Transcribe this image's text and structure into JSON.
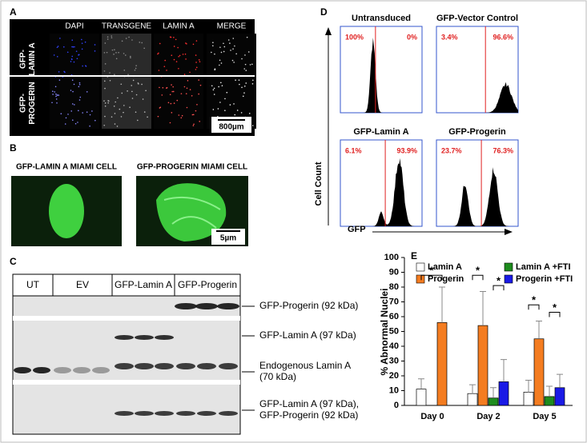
{
  "panels": {
    "a": {
      "label": "A",
      "columns": [
        "DAPI",
        "TRANSGENE",
        "LAMIN A",
        "MERGE"
      ],
      "rows": [
        "GFP-\nLAMIN A",
        "GFP-\nPROGERIN"
      ],
      "scale_bar": "800µm"
    },
    "b": {
      "label": "B",
      "captions": [
        "GFP-LAMIN A MIAMI CELL",
        "GFP-PROGERIN MIAMI CELL"
      ],
      "scale_bar": "5µm"
    },
    "c": {
      "label": "C",
      "lanes": [
        "UT",
        "EV",
        "GFP-Lamin A",
        "GFP-Progerin"
      ],
      "bands": [
        "GFP-Progerin (92 kDa)",
        "GFP-Lamin A (97 kDa)",
        "Endogenous Lamin A\n(70 kDa)",
        "GFP-Lamin A (97 kDa),\nGFP-Progerin (92 kDa)"
      ]
    },
    "d": {
      "label": "D",
      "y_label": "Cell Count",
      "x_label": "GFP",
      "plots": [
        {
          "title": "Untransduced",
          "left": "100%",
          "right": "0%"
        },
        {
          "title": "GFP-Vector Control",
          "left": "3.4%",
          "right": "96.6%"
        },
        {
          "title": "GFP-Lamin A",
          "left": "6.1%",
          "right": "93.9%"
        },
        {
          "title": "GFP-Progerin",
          "left": "23.7%",
          "right": "76.3%"
        }
      ]
    },
    "e": {
      "label": "E"
    }
  },
  "chart_data": {
    "type": "bar",
    "y_label": "% Abnormal Nuclei",
    "categories": [
      "Day 0",
      "Day 2",
      "Day 5"
    ],
    "series": [
      {
        "name": "Lamin A",
        "color": "#ffffff",
        "values": [
          11,
          8,
          9
        ],
        "errors": [
          7,
          6,
          8
        ]
      },
      {
        "name": "Progerin",
        "color": "#f47c20",
        "values": [
          56,
          54,
          45
        ],
        "errors": [
          24,
          23,
          12
        ]
      },
      {
        "name": "Lamin A +FTI",
        "color": "#1e8c1e",
        "values": [
          null,
          5,
          6
        ],
        "errors": [
          null,
          7,
          7
        ]
      },
      {
        "name": "Progerin +FTI",
        "color": "#1a1ae6",
        "values": [
          null,
          16,
          12
        ],
        "errors": [
          null,
          15,
          9
        ]
      }
    ],
    "ylim": [
      0,
      100
    ],
    "yticks": [
      0,
      10,
      20,
      30,
      40,
      50,
      60,
      70,
      80,
      90,
      100
    ],
    "annotations": [
      "*",
      "*",
      "*",
      "*",
      "*"
    ]
  }
}
